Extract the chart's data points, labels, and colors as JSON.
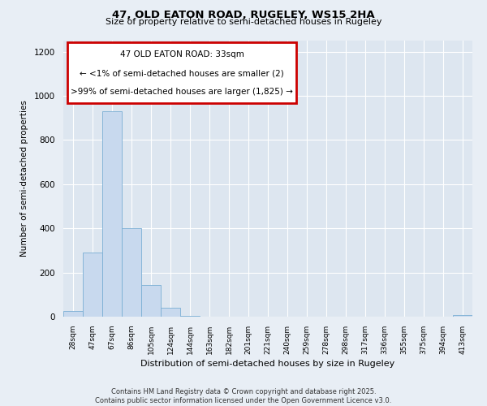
{
  "title_line1": "47, OLD EATON ROAD, RUGELEY, WS15 2HA",
  "title_line2": "Size of property relative to semi-detached houses in Rugeley",
  "xlabel": "Distribution of semi-detached houses by size in Rugeley",
  "ylabel": "Number of semi-detached properties",
  "bar_color": "#c8d9ee",
  "bar_edge_color": "#7aaed4",
  "annotation_box_color": "#cc0000",
  "annotation_title": "47 OLD EATON ROAD: 33sqm",
  "annotation_line2": "← <1% of semi-detached houses are smaller (2)",
  "annotation_line3": ">99% of semi-detached houses are larger (1,825) →",
  "bin_labels": [
    "28sqm",
    "47sqm",
    "67sqm",
    "86sqm",
    "105sqm",
    "124sqm",
    "144sqm",
    "163sqm",
    "182sqm",
    "201sqm",
    "221sqm",
    "240sqm",
    "259sqm",
    "278sqm",
    "298sqm",
    "317sqm",
    "336sqm",
    "355sqm",
    "375sqm",
    "394sqm",
    "413sqm"
  ],
  "bar_heights": [
    25,
    290,
    930,
    400,
    145,
    40,
    5,
    0,
    0,
    0,
    0,
    0,
    0,
    0,
    0,
    0,
    0,
    0,
    0,
    0,
    8
  ],
  "ylim": [
    0,
    1250
  ],
  "yticks": [
    0,
    200,
    400,
    600,
    800,
    1000,
    1200
  ],
  "background_color": "#e8eef5",
  "plot_bg_color": "#dde6f0",
  "grid_color": "#ffffff",
  "footer_line1": "Contains HM Land Registry data © Crown copyright and database right 2025.",
  "footer_line2": "Contains public sector information licensed under the Open Government Licence v3.0."
}
